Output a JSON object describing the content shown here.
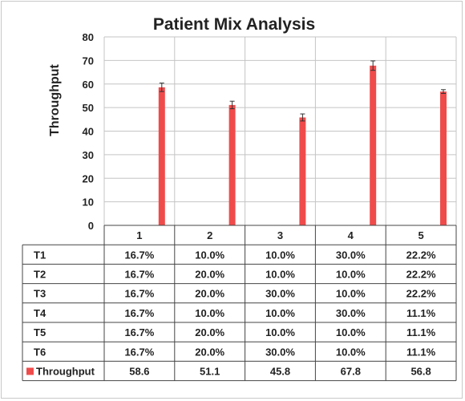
{
  "chart_data": {
    "type": "bar",
    "title": "Patient Mix Analysis",
    "ylabel": "Throughput",
    "xlabel": "",
    "ylim": [
      0,
      80
    ],
    "yticks": [
      0,
      10,
      20,
      30,
      40,
      50,
      60,
      70,
      80
    ],
    "categories": [
      "1",
      "2",
      "3",
      "4",
      "5"
    ],
    "grid": true,
    "series": [
      {
        "name": "Throughput",
        "color": "#f04b4b",
        "values": [
          58.6,
          51.1,
          45.8,
          67.8,
          56.8
        ],
        "values_text": [
          "58.6",
          "51.1",
          "45.8",
          "67.8",
          "56.8"
        ],
        "error": [
          1.8,
          1.6,
          1.5,
          2.0,
          0.8
        ]
      }
    ],
    "table": {
      "rows": [
        {
          "label": "T1",
          "values": [
            "16.7%",
            "10.0%",
            "10.0%",
            "30.0%",
            "22.2%"
          ]
        },
        {
          "label": "T2",
          "values": [
            "16.7%",
            "20.0%",
            "10.0%",
            "10.0%",
            "22.2%"
          ]
        },
        {
          "label": "T3",
          "values": [
            "16.7%",
            "20.0%",
            "30.0%",
            "10.0%",
            "22.2%"
          ]
        },
        {
          "label": "T4",
          "values": [
            "16.7%",
            "10.0%",
            "10.0%",
            "30.0%",
            "11.1%"
          ]
        },
        {
          "label": "T5",
          "values": [
            "16.7%",
            "20.0%",
            "10.0%",
            "10.0%",
            "11.1%"
          ]
        },
        {
          "label": "T6",
          "values": [
            "16.7%",
            "20.0%",
            "30.0%",
            "10.0%",
            "11.1%"
          ]
        }
      ]
    }
  }
}
